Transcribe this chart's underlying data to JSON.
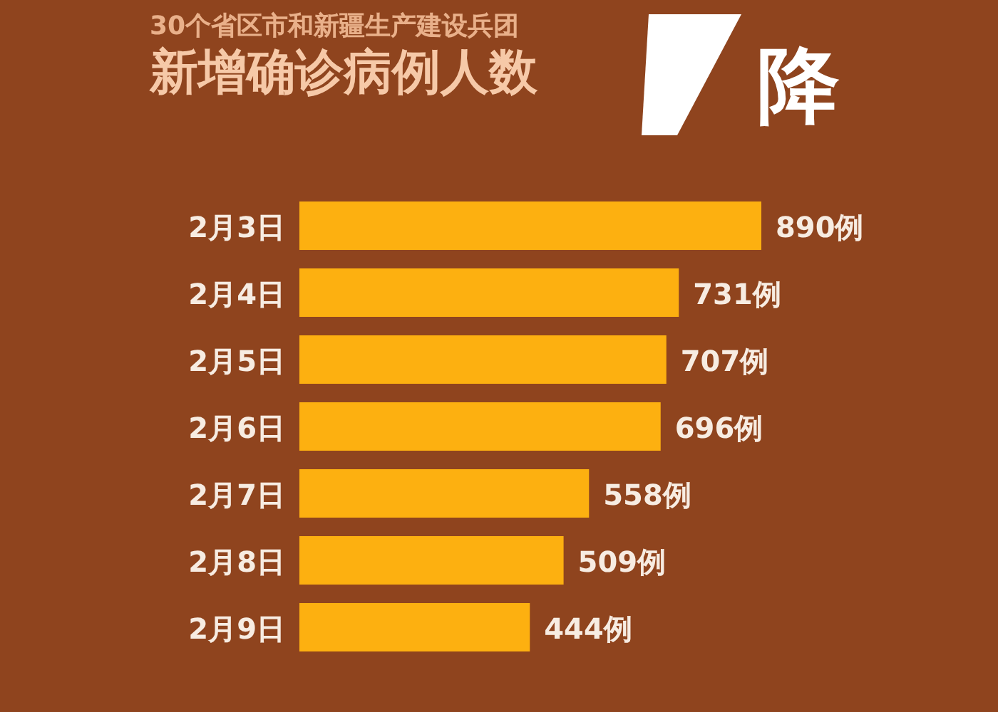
{
  "chart_data": {
    "type": "bar",
    "orientation": "horizontal",
    "subtitle": "30个省区市和新疆生产建设兵团",
    "title": "新增确诊病例人数",
    "annotations": [
      "降"
    ],
    "categories": [
      "2月3日",
      "2月4日",
      "2月5日",
      "2月6日",
      "2月7日",
      "2月8日",
      "2月9日"
    ],
    "values": [
      890,
      731,
      707,
      696,
      558,
      509,
      444
    ],
    "value_labels": [
      "890例",
      "731例",
      "707例",
      "696例",
      "558例",
      "509例",
      "444例"
    ],
    "color": "#fdb010"
  }
}
